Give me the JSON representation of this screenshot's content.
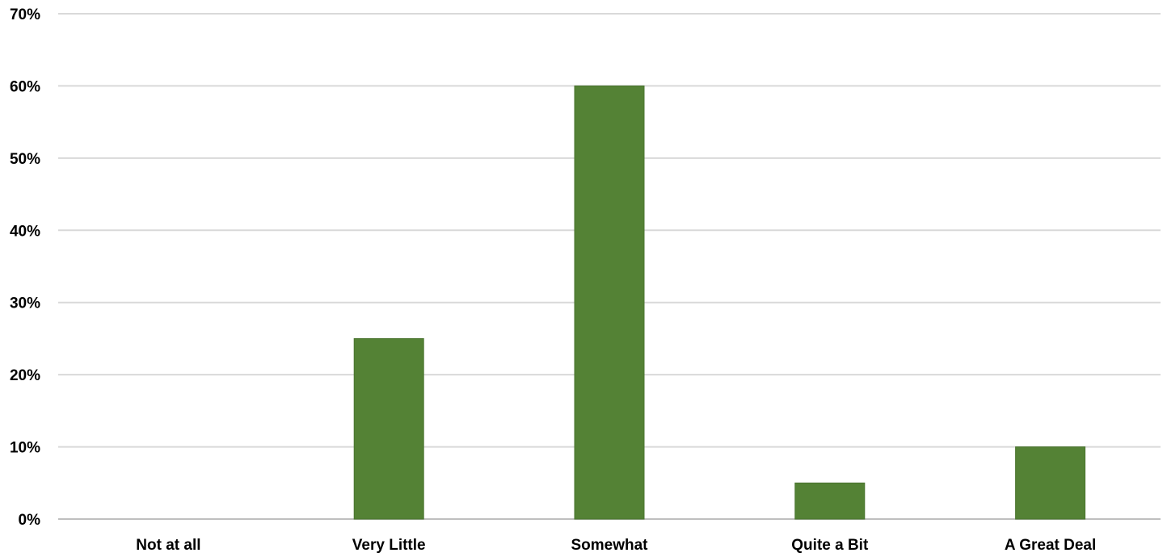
{
  "chart_data": {
    "type": "bar",
    "categories": [
      "Not at all",
      "Very Little",
      "Somewhat",
      "Quite a Bit",
      "A Great Deal"
    ],
    "values": [
      0,
      25,
      60,
      5,
      10
    ],
    "y_tick_labels": [
      "0%",
      "10%",
      "20%",
      "30%",
      "40%",
      "50%",
      "60%",
      "70%"
    ],
    "ylim": [
      0,
      70
    ],
    "y_unit": "%",
    "grid": true,
    "legend": "none",
    "colors": {
      "bar": "#548235",
      "bar_edge": "#4a742f",
      "grid": "#d9d9d9"
    }
  }
}
